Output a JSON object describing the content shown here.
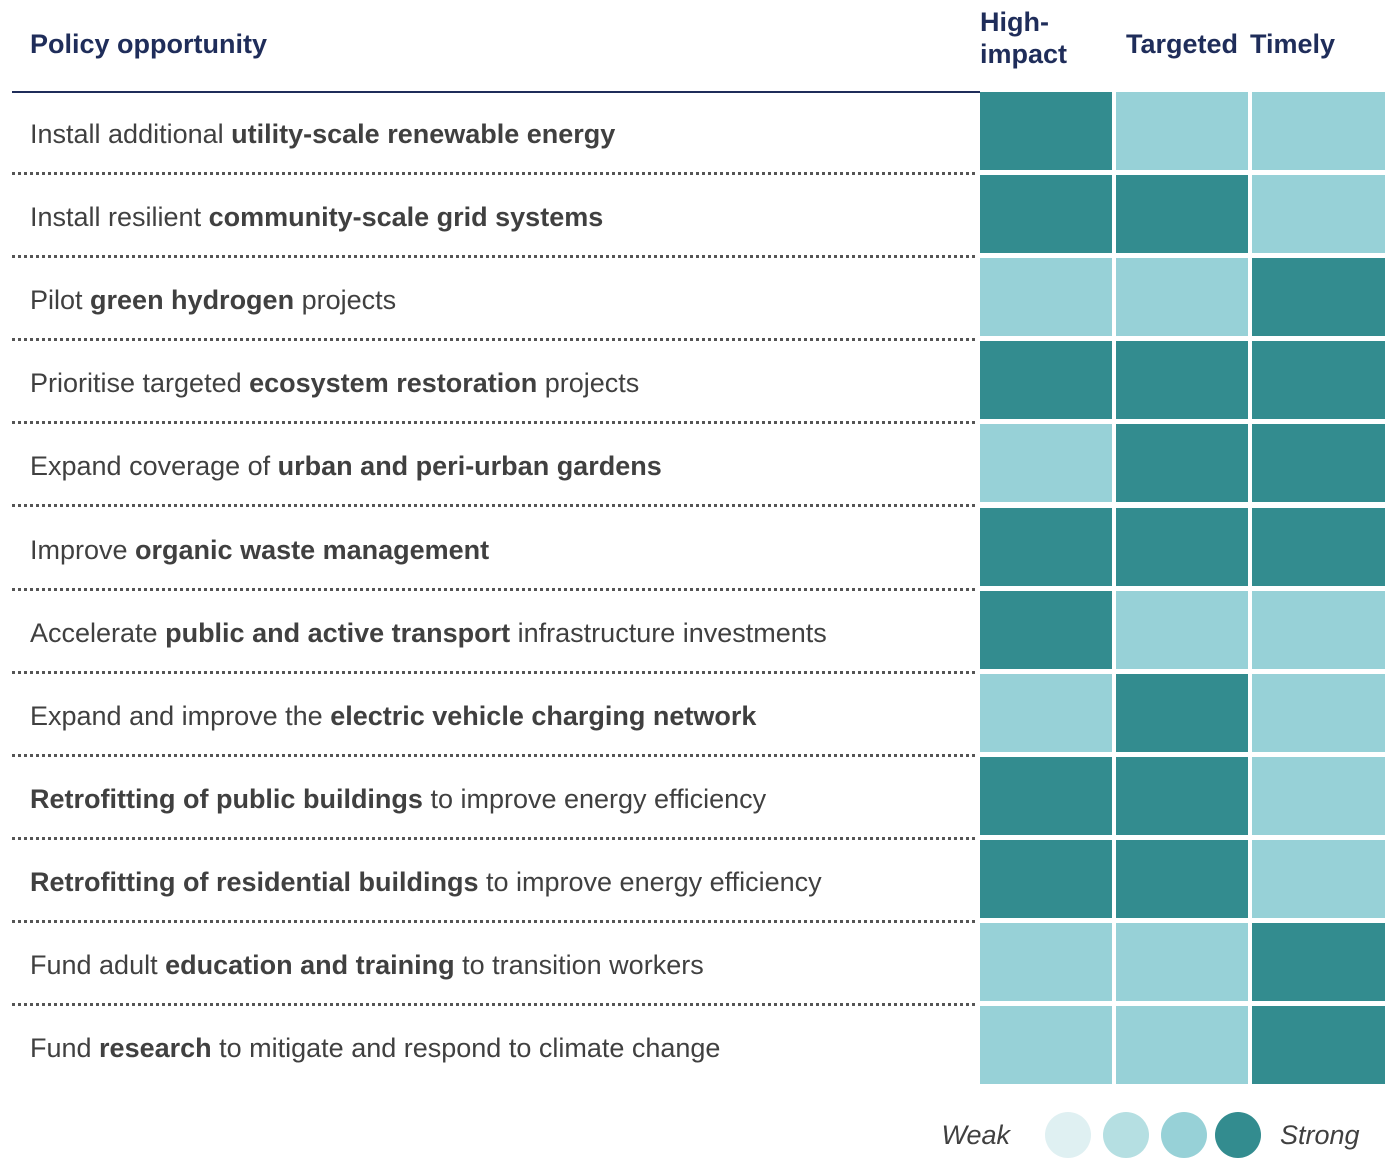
{
  "header": {
    "title": "Policy opportunity",
    "columns": [
      "High-impact",
      "Targeted",
      "Timely"
    ]
  },
  "rows": [
    {
      "label": [
        {
          "text": "Install additional ",
          "bold": false
        },
        {
          "text": "utility-scale renewable energy",
          "bold": true
        }
      ],
      "cells": [
        "#338c8f",
        "#97d1d7",
        "#97d1d7"
      ]
    },
    {
      "label": [
        {
          "text": "Install resilient ",
          "bold": false
        },
        {
          "text": "community-scale grid systems",
          "bold": true
        }
      ],
      "cells": [
        "#338c8f",
        "#338c8f",
        "#97d1d7"
      ]
    },
    {
      "label": [
        {
          "text": "Pilot ",
          "bold": false
        },
        {
          "text": "green hydrogen",
          "bold": true
        },
        {
          "text": " projects",
          "bold": false
        }
      ],
      "cells": [
        "#97d1d7",
        "#97d1d7",
        "#338c8f"
      ]
    },
    {
      "label": [
        {
          "text": "Prioritise targeted ",
          "bold": false
        },
        {
          "text": "ecosystem restoration",
          "bold": true
        },
        {
          "text": " projects",
          "bold": false
        }
      ],
      "cells": [
        "#338c8f",
        "#338c8f",
        "#338c8f"
      ]
    },
    {
      "label": [
        {
          "text": "Expand coverage of ",
          "bold": false
        },
        {
          "text": "urban and peri-urban gardens",
          "bold": true
        }
      ],
      "cells": [
        "#97d1d7",
        "#338c8f",
        "#338c8f"
      ]
    },
    {
      "label": [
        {
          "text": "Improve ",
          "bold": false
        },
        {
          "text": "organic waste management",
          "bold": true
        }
      ],
      "cells": [
        "#338c8f",
        "#338c8f",
        "#338c8f"
      ]
    },
    {
      "label": [
        {
          "text": "Accelerate ",
          "bold": false
        },
        {
          "text": "public and active transport",
          "bold": true
        },
        {
          "text": " infrastructure investments",
          "bold": false
        }
      ],
      "cells": [
        "#338c8f",
        "#97d1d7",
        "#97d1d7"
      ]
    },
    {
      "label": [
        {
          "text": "Expand and improve the ",
          "bold": false
        },
        {
          "text": "electric vehicle charging network",
          "bold": true
        }
      ],
      "cells": [
        "#97d1d7",
        "#338c8f",
        "#97d1d7"
      ]
    },
    {
      "label": [
        {
          "text": "Retrofitting of public buildings",
          "bold": true
        },
        {
          "text": " to improve energy efficiency",
          "bold": false
        }
      ],
      "cells": [
        "#338c8f",
        "#338c8f",
        "#97d1d7"
      ]
    },
    {
      "label": [
        {
          "text": "Retrofitting of residential buildings",
          "bold": true
        },
        {
          "text": " to improve energy efficiency",
          "bold": false
        }
      ],
      "cells": [
        "#338c8f",
        "#338c8f",
        "#97d1d7"
      ]
    },
    {
      "label": [
        {
          "text": "Fund adult ",
          "bold": false
        },
        {
          "text": "education and training",
          "bold": true
        },
        {
          "text": " to transition workers",
          "bold": false
        }
      ],
      "cells": [
        "#97d1d7",
        "#97d1d7",
        "#338c8f"
      ]
    },
    {
      "label": [
        {
          "text": "Fund ",
          "bold": false
        },
        {
          "text": "research",
          "bold": true
        },
        {
          "text": " to mitigate and respond to climate change",
          "bold": false
        }
      ],
      "cells": [
        "#97d1d7",
        "#97d1d7",
        "#338c8f"
      ]
    }
  ],
  "legend": {
    "low": "Weak",
    "high": "Strong",
    "colors": [
      "#dff0f2",
      "#b5dfe2",
      "#97d1d7",
      "#338c8f"
    ]
  }
}
